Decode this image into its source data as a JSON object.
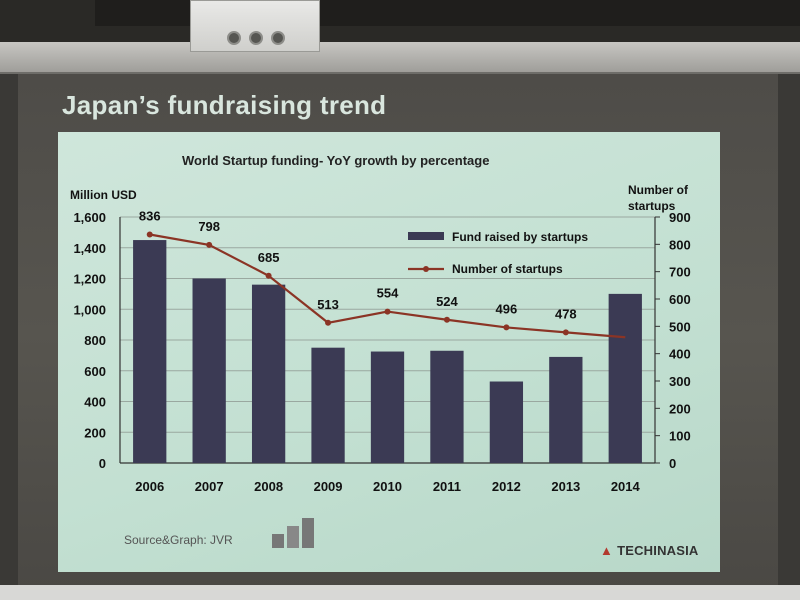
{
  "slide": {
    "title": "Japan’s fundraising trend",
    "source": "Source&Graph: JVR",
    "jvr_logo_text": "JVR",
    "brand": "TECHINASIA"
  },
  "chart_data": {
    "type": "bar",
    "title": "World Startup funding- YoY growth by percentage",
    "ylabel": "Million USD",
    "y2label": "Number of startups",
    "categories": [
      "2006",
      "2007",
      "2008",
      "2009",
      "2010",
      "2011",
      "2012",
      "2013",
      "2014"
    ],
    "ylim": [
      0,
      1600
    ],
    "yticks": [
      "0",
      "200",
      "400",
      "600",
      "800",
      "1,000",
      "1,200",
      "1,400",
      "1,600"
    ],
    "y2lim": [
      0,
      900
    ],
    "y2ticks": [
      "0",
      "100",
      "200",
      "300",
      "400",
      "500",
      "600",
      "700",
      "800",
      "900"
    ],
    "legend_position": "top-right",
    "series": [
      {
        "name": "Fund raised by startups",
        "type": "bar",
        "color": "#3b3a54",
        "values": [
          1450,
          1200,
          1160,
          750,
          725,
          730,
          530,
          690,
          1100
        ]
      },
      {
        "name": "Number of startups",
        "type": "line",
        "axis": "right",
        "color": "#8b3425",
        "values": [
          836,
          798,
          685,
          513,
          554,
          524,
          496,
          478,
          460
        ],
        "labels": [
          "836",
          "798",
          "685",
          "513",
          "554",
          "524",
          "496",
          "478",
          ""
        ]
      }
    ],
    "grid": true
  },
  "colors": {
    "panel": "#c4e0d3",
    "bar": "#3b3a54",
    "line": "#8b3425",
    "grid": "#9aa8a0"
  }
}
